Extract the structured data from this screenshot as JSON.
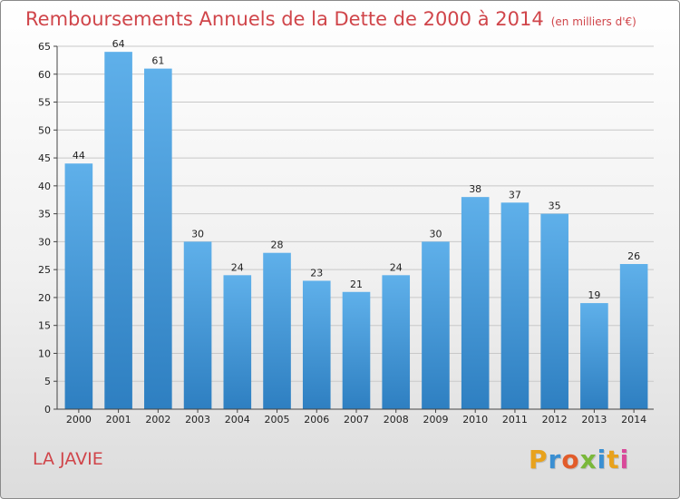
{
  "title": "Remboursements Annuels de la Dette de 2000 à 2014",
  "subtitle": "(en milliers d'€)",
  "commune": "LA JAVIE",
  "logo": {
    "text": "Proxiti",
    "colors": [
      "#e8a21c",
      "#3a8fd2",
      "#e25c2a",
      "#7ab83a",
      "#3a8fd2",
      "#e8a21c",
      "#d94a9a"
    ]
  },
  "colors": {
    "title": "#d0454a",
    "bar_top": "#5fb0ea",
    "bar_bottom": "#2e7fc1"
  },
  "chart_data": {
    "type": "bar",
    "categories": [
      "2000",
      "2001",
      "2002",
      "2003",
      "2004",
      "2005",
      "2006",
      "2007",
      "2008",
      "2009",
      "2010",
      "2011",
      "2012",
      "2013",
      "2014"
    ],
    "values": [
      44,
      64,
      61,
      30,
      24,
      28,
      23,
      21,
      24,
      30,
      38,
      37,
      35,
      19,
      26
    ],
    "ylim": [
      0,
      65
    ],
    "yticks": [
      0,
      5,
      10,
      15,
      20,
      25,
      30,
      35,
      40,
      45,
      50,
      55,
      60,
      65
    ],
    "grid": true
  }
}
